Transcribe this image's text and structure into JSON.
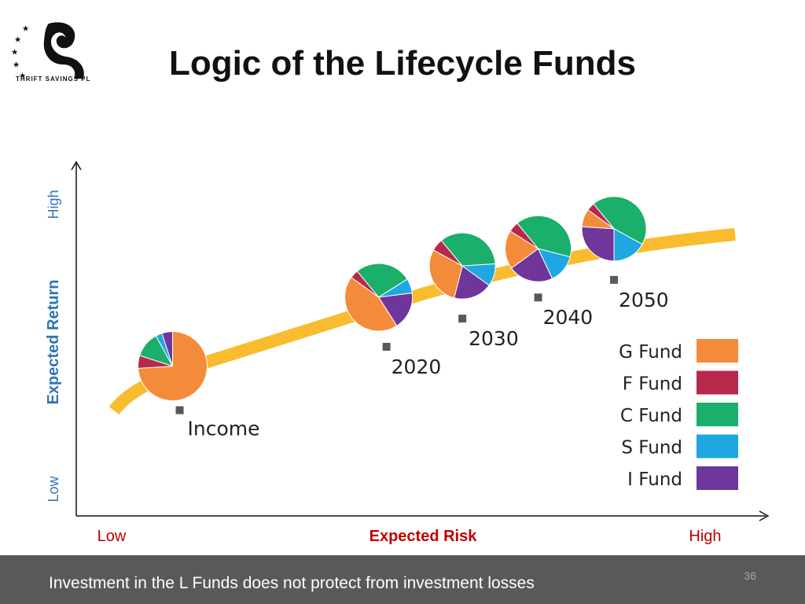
{
  "header": {
    "title": "Logic of the Lifecycle Funds",
    "logo_text": "THRIFT SAVINGS PLA"
  },
  "footer": {
    "disclaimer": "Investment in the L Funds does not protect from investment losses",
    "page_number": "36"
  },
  "chart_data": {
    "type": "scatter",
    "title": "",
    "xlabel": "Expected Risk",
    "ylabel": "Expected Return",
    "x_ticks": {
      "low": "Low",
      "high": "High"
    },
    "y_ticks": {
      "low": "Low",
      "high": "High"
    },
    "colors": {
      "axis_y_label": "#2e75b6",
      "axis_x_label": "#c00000",
      "curve": "#f8bc2e",
      "marker": "#595959"
    },
    "legend": {
      "placement": "bottom-right",
      "entries": [
        {
          "name": "G Fund",
          "color": "#f48b3a"
        },
        {
          "name": "F Fund",
          "color": "#b7284d"
        },
        {
          "name": "C Fund",
          "color": "#1aaf6a"
        },
        {
          "name": "S Fund",
          "color": "#1ea7e0"
        },
        {
          "name": "I Fund",
          "color": "#6e359a"
        }
      ]
    },
    "funds": [
      {
        "label": "Income",
        "risk": 0.15,
        "return": 0.3,
        "allocation": {
          "G Fund": 74,
          "F Fund": 6,
          "C Fund": 12,
          "S Fund": 3,
          "I Fund": 5
        }
      },
      {
        "label": "2020",
        "risk": 0.45,
        "return": 0.48,
        "allocation": {
          "G Fund": 44,
          "F Fund": 4,
          "C Fund": 27,
          "S Fund": 7,
          "I Fund": 18
        }
      },
      {
        "label": "2030",
        "risk": 0.56,
        "return": 0.56,
        "allocation": {
          "G Fund": 29,
          "F Fund": 6,
          "C Fund": 35,
          "S Fund": 11,
          "I Fund": 19
        }
      },
      {
        "label": "2040",
        "risk": 0.67,
        "return": 0.62,
        "allocation": {
          "G Fund": 19,
          "F Fund": 5,
          "C Fund": 40,
          "S Fund": 14,
          "I Fund": 22
        }
      },
      {
        "label": "2050",
        "risk": 0.78,
        "return": 0.67,
        "allocation": {
          "G Fund": 9,
          "F Fund": 4,
          "C Fund": 44,
          "S Fund": 17,
          "I Fund": 26
        }
      }
    ]
  }
}
